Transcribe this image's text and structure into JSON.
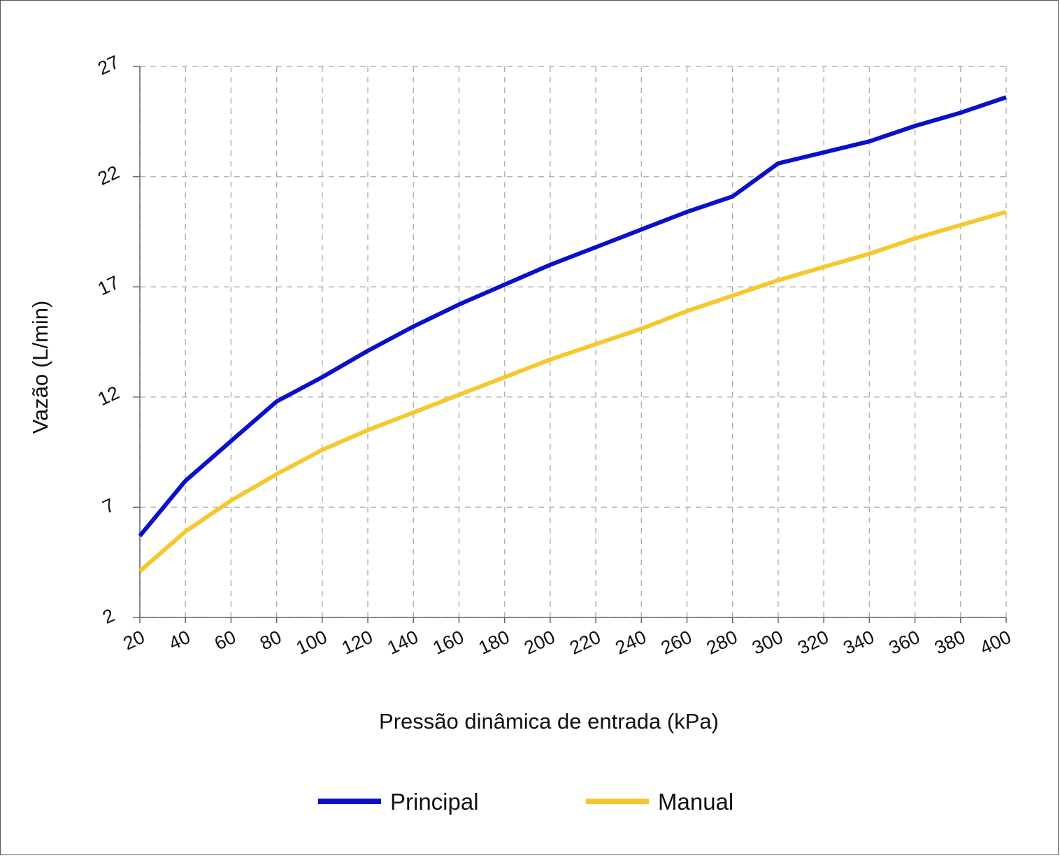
{
  "chart_data": {
    "type": "line",
    "xlabel": "Pressão dinâmica de entrada (kPa)",
    "ylabel": "Vazão (L/min)",
    "x": [
      20,
      40,
      60,
      80,
      100,
      120,
      140,
      160,
      180,
      200,
      220,
      240,
      260,
      280,
      300,
      320,
      340,
      360,
      380,
      400
    ],
    "x_ticks": [
      "20",
      "40",
      "60",
      "80",
      "100",
      "120",
      "140",
      "160",
      "180",
      "200",
      "220",
      "240",
      "260",
      "280",
      "300",
      "320",
      "340",
      "360",
      "380",
      "400"
    ],
    "y_ticks": [
      "2",
      "7",
      "12",
      "17",
      "22",
      "27"
    ],
    "ylim": [
      2,
      27
    ],
    "grid": true,
    "legend_position": "bottom",
    "series": [
      {
        "name": "Principal",
        "color": "#0a10c8",
        "values": [
          5.7,
          8.2,
          10.0,
          11.8,
          12.9,
          14.1,
          15.2,
          16.2,
          17.1,
          18.0,
          18.8,
          19.6,
          20.4,
          21.1,
          22.6,
          23.1,
          23.6,
          24.3,
          24.9,
          25.6
        ]
      },
      {
        "name": "Manual",
        "color": "#f5c830",
        "values": [
          4.1,
          5.9,
          7.3,
          8.5,
          9.6,
          10.5,
          11.3,
          12.1,
          12.9,
          13.7,
          14.4,
          15.1,
          15.9,
          16.6,
          17.3,
          17.9,
          18.5,
          19.2,
          19.8,
          20.4
        ]
      }
    ]
  }
}
